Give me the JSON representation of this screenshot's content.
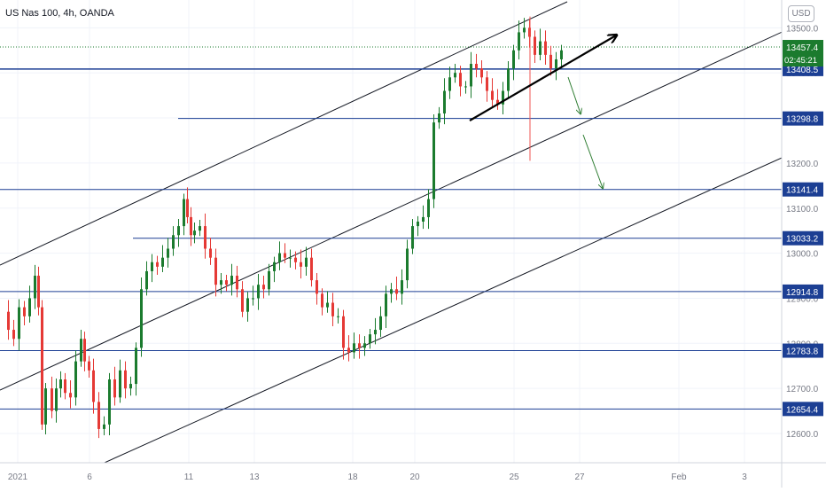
{
  "chart_data": {
    "type": "candlestick",
    "title": "US Nas 100, 4h, OANDA",
    "currency": "USD",
    "y_ticks": [
      12600,
      12700,
      12800,
      12900,
      13000,
      13100,
      13200,
      13300,
      13400,
      13500
    ],
    "y_tick_labels": [
      "12600.0",
      "12700.0",
      "12800.0",
      "12900.0",
      "13000.0",
      "13100.0",
      "13200.0",
      "13300.0",
      "13400.0",
      "13500.0"
    ],
    "x_tick_labels": [
      "2021",
      "6",
      "11",
      "13",
      "18",
      "20",
      "25",
      "27",
      "Feb",
      "3"
    ],
    "current_price": "13457.4",
    "countdown": "02:45:21",
    "horizontal_levels": [
      "13408.5",
      "13298.8",
      "13141.4",
      "13033.2",
      "12914.8",
      "12783.8",
      "12654.4"
    ],
    "colors": {
      "up": "#26a69a",
      "up_body": "#1b7b2e",
      "down": "#ef5350",
      "down_body": "#e53935",
      "level": "#1c3f94",
      "channel": "#131722",
      "arrow": "#2e7d32"
    }
  }
}
